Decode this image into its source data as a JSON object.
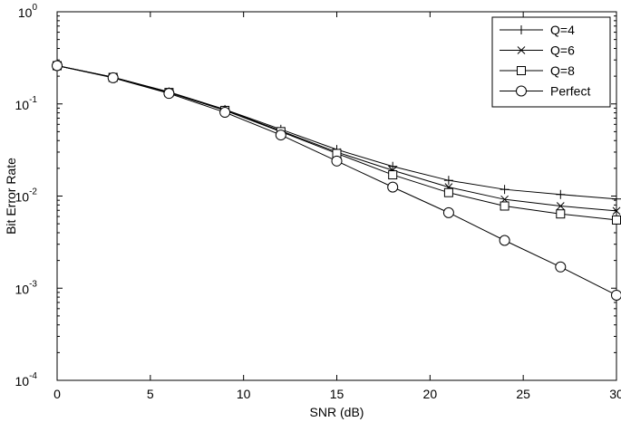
{
  "chart_data": {
    "type": "line",
    "xlabel": "SNR (dB)",
    "ylabel": "Bit Error Rate",
    "xlim": [
      0,
      30
    ],
    "ylim": [
      0.0001,
      1
    ],
    "yscale": "log",
    "grid": false,
    "legend_position": "top-right",
    "xticks": [
      "0",
      "5",
      "10",
      "15",
      "20",
      "25",
      "30"
    ],
    "yticks": [
      {
        "base": "10",
        "exp": "0"
      },
      {
        "base": "10",
        "exp": "-1"
      },
      {
        "base": "10",
        "exp": "-2"
      },
      {
        "base": "10",
        "exp": "-3"
      },
      {
        "base": "10",
        "exp": "-4"
      }
    ],
    "x": [
      0,
      3,
      6,
      9,
      12,
      15,
      18,
      21,
      24,
      27,
      30
    ],
    "series": [
      {
        "name": "Q=4",
        "marker": "plus",
        "values": [
          0.26,
          0.195,
          0.135,
          0.087,
          0.053,
          0.032,
          0.021,
          0.0148,
          0.0118,
          0.0104,
          0.0093
        ]
      },
      {
        "name": "Q=6",
        "marker": "x",
        "values": [
          0.26,
          0.195,
          0.134,
          0.086,
          0.051,
          0.03,
          0.019,
          0.0125,
          0.0092,
          0.0078,
          0.0069
        ]
      },
      {
        "name": "Q=8",
        "marker": "square",
        "values": [
          0.26,
          0.194,
          0.133,
          0.085,
          0.05,
          0.029,
          0.017,
          0.0109,
          0.0078,
          0.0064,
          0.0055
        ]
      },
      {
        "name": "Perfect",
        "marker": "circle",
        "values": [
          0.26,
          0.192,
          0.13,
          0.081,
          0.046,
          0.024,
          0.0125,
          0.0066,
          0.0033,
          0.0017,
          0.00084
        ]
      }
    ]
  }
}
